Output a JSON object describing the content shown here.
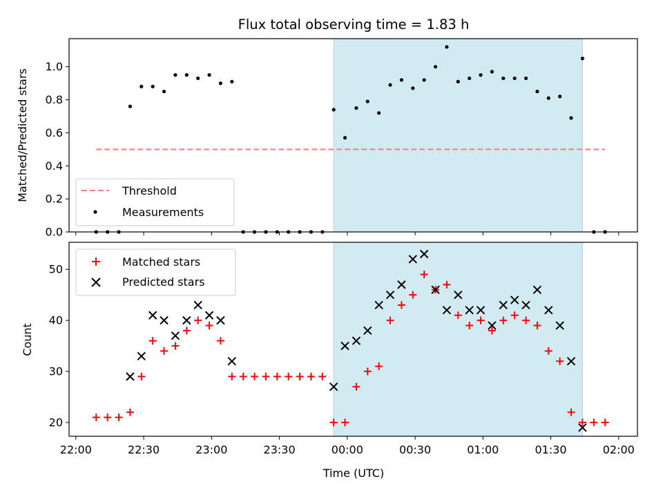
{
  "chart_data": [
    {
      "type": "scatter",
      "title": "Flux total observing time = 1.83 h",
      "xlabel": "",
      "ylabel": "Matched/Predicted stars",
      "ylim": [
        0,
        1.17
      ],
      "yticks": [
        "0.0",
        "0.2",
        "0.4",
        "0.6",
        "0.8",
        "1.0"
      ],
      "x_range": [
        "22:00",
        "02:00"
      ],
      "shaded_interval": [
        "23:54",
        "01:44"
      ],
      "shade_color": "#add8e6",
      "legend_position": "lower-left",
      "threshold": {
        "name": "Threshold",
        "y": 0.5,
        "x": [
          "22:09",
          "01:54"
        ],
        "color": "#f08080",
        "style": "dashed"
      },
      "series": [
        {
          "name": "Measurements",
          "color": "#000000",
          "marker": "dot",
          "x": [
            "22:09",
            "22:14",
            "22:19",
            "22:24",
            "22:29",
            "22:34",
            "22:39",
            "22:44",
            "22:49",
            "22:54",
            "22:59",
            "23:04",
            "23:09",
            "23:14",
            "23:19",
            "23:24",
            "23:29",
            "23:34",
            "23:39",
            "23:44",
            "23:49",
            "23:54",
            "23:59",
            "00:04",
            "00:09",
            "00:14",
            "00:19",
            "00:24",
            "00:29",
            "00:34",
            "00:39",
            "00:44",
            "00:49",
            "00:54",
            "00:59",
            "01:04",
            "01:09",
            "01:14",
            "01:19",
            "01:24",
            "01:29",
            "01:34",
            "01:39",
            "01:44",
            "01:49",
            "01:54"
          ],
          "y": [
            0,
            0,
            0,
            0.76,
            0.88,
            0.88,
            0.85,
            0.95,
            0.95,
            0.93,
            0.95,
            0.9,
            0.91,
            0,
            0,
            0,
            0,
            0,
            0,
            0,
            0,
            0.74,
            0.57,
            0.75,
            0.79,
            0.72,
            0.89,
            0.92,
            0.87,
            0.92,
            1.0,
            1.12,
            0.91,
            0.93,
            0.95,
            0.97,
            0.93,
            0.93,
            0.93,
            0.85,
            0.81,
            0.82,
            0.69,
            1.05,
            0,
            0
          ]
        }
      ]
    },
    {
      "type": "scatter",
      "title": "",
      "xlabel": "Time (UTC)",
      "ylabel": "Count",
      "ylim": [
        17.3,
        55.3
      ],
      "yticks": [
        "20",
        "30",
        "40",
        "50"
      ],
      "x_range": [
        "22:00",
        "02:00"
      ],
      "xticks": [
        "22:00",
        "22:30",
        "23:00",
        "23:30",
        "00:00",
        "00:30",
        "01:00",
        "01:30",
        "02:00"
      ],
      "shaded_interval": [
        "23:54",
        "01:44"
      ],
      "shade_color": "#add8e6",
      "legend_position": "upper-left",
      "series": [
        {
          "name": "Matched stars",
          "color": "#ff0000",
          "marker": "plus",
          "x": [
            "22:09",
            "22:14",
            "22:19",
            "22:24",
            "22:29",
            "22:34",
            "22:39",
            "22:44",
            "22:49",
            "22:54",
            "22:59",
            "23:04",
            "23:09",
            "23:14",
            "23:19",
            "23:24",
            "23:29",
            "23:34",
            "23:39",
            "23:44",
            "23:49",
            "23:54",
            "23:59",
            "00:04",
            "00:09",
            "00:14",
            "00:19",
            "00:24",
            "00:29",
            "00:34",
            "00:39",
            "00:44",
            "00:49",
            "00:54",
            "00:59",
            "01:04",
            "01:09",
            "01:14",
            "01:19",
            "01:24",
            "01:29",
            "01:34",
            "01:39",
            "01:44",
            "01:49",
            "01:54"
          ],
          "y": [
            21,
            21,
            21,
            22,
            29,
            36,
            34,
            35,
            38,
            40,
            39,
            36,
            29,
            29,
            29,
            29,
            29,
            29,
            29,
            29,
            29,
            20,
            20,
            27,
            30,
            31,
            40,
            43,
            45,
            49,
            46,
            47,
            41,
            39,
            40,
            38,
            40,
            41,
            40,
            39,
            34,
            32,
            22,
            20,
            20,
            20
          ]
        },
        {
          "name": "Predicted stars",
          "color": "#000000",
          "marker": "x",
          "x": [
            "22:24",
            "22:29",
            "22:34",
            "22:39",
            "22:44",
            "22:49",
            "22:54",
            "22:59",
            "23:04",
            "23:09",
            "23:54",
            "23:59",
            "00:04",
            "00:09",
            "00:14",
            "00:19",
            "00:24",
            "00:29",
            "00:34",
            "00:39",
            "00:44",
            "00:49",
            "00:54",
            "00:59",
            "01:04",
            "01:09",
            "01:14",
            "01:19",
            "01:24",
            "01:29",
            "01:34",
            "01:39",
            "01:44"
          ],
          "y": [
            29,
            33,
            41,
            40,
            37,
            40,
            43,
            41,
            40,
            32,
            27,
            35,
            36,
            38,
            43,
            45,
            47,
            52,
            53,
            46,
            42,
            45,
            42,
            42,
            39,
            43,
            44,
            43,
            46,
            42,
            39,
            32,
            19
          ]
        }
      ]
    }
  ]
}
